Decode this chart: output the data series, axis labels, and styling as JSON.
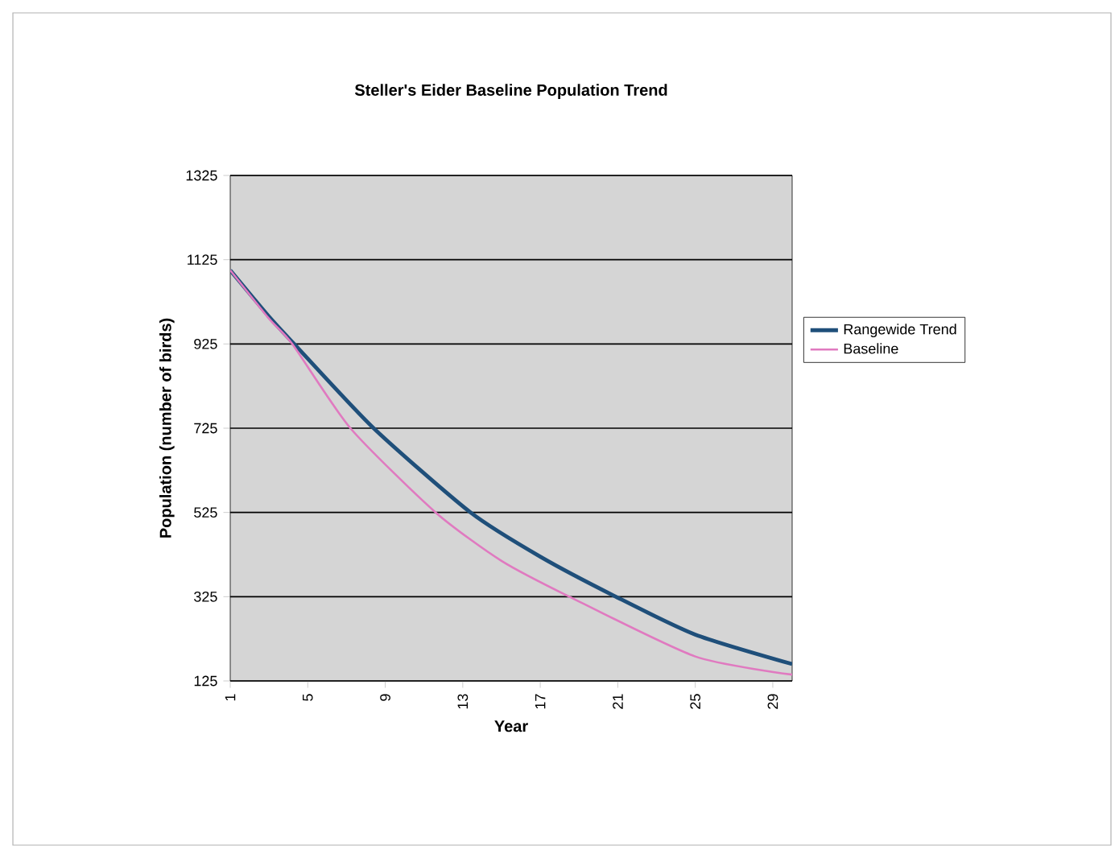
{
  "chart_data": {
    "type": "line",
    "title": "Steller's Eider Baseline Population Trend",
    "xlabel": "Year",
    "ylabel": "Population (number of birds)",
    "xlim": [
      1,
      30
    ],
    "xticks": [
      1,
      5,
      9,
      13,
      17,
      21,
      25,
      29
    ],
    "ylim": [
      125,
      1325
    ],
    "yticks": [
      125,
      325,
      525,
      725,
      925,
      1125,
      1325
    ],
    "grid": "y",
    "legend": "right",
    "marker": "none",
    "line_style": "solid",
    "series": [
      {
        "name": "Rangewide Trend",
        "color": "#1f4f7a",
        "x": [
          1,
          3,
          4.3,
          8.4,
          13.4,
          17,
          20.9,
          25,
          30
        ],
        "values": [
          1100,
          990,
          925,
          725,
          525,
          420,
          325,
          235,
          165
        ]
      },
      {
        "name": "Baseline",
        "color": "#e07ac0",
        "x": [
          1,
          3,
          4.2,
          7.2,
          11.6,
          15,
          18.5,
          25,
          30
        ],
        "values": [
          1100,
          985,
          925,
          725,
          525,
          410,
          325,
          183,
          140
        ]
      }
    ]
  }
}
